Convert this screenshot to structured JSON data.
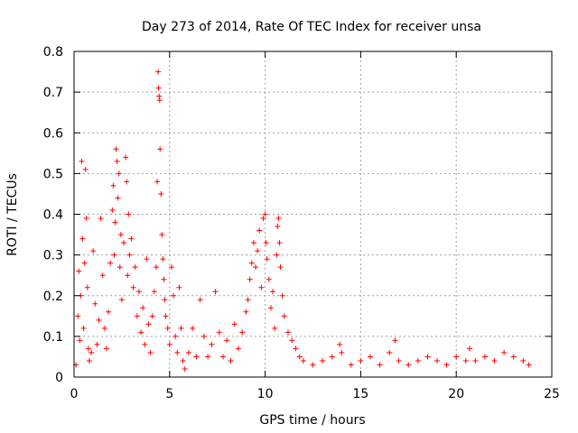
{
  "chart_data": {
    "type": "scatter",
    "title": "Day 273 of 2014, Rate Of TEC Index for receiver unsa",
    "xlabel": "GPS time / hours",
    "ylabel": "ROTI / TECUs",
    "xlim": [
      0,
      25
    ],
    "ylim": [
      0,
      0.8
    ],
    "xticks": [
      "0",
      "5",
      "10",
      "15",
      "20",
      "25"
    ],
    "yticks": [
      "0",
      "0.1",
      "0.2",
      "0.3",
      "0.4",
      "0.5",
      "0.6",
      "0.7",
      "0.8"
    ],
    "grid": true,
    "marker": "plus",
    "color": "#ff0000",
    "series": [
      {
        "values": [
          [
            0.1,
            0.03
          ],
          [
            0.2,
            0.15
          ],
          [
            0.25,
            0.26
          ],
          [
            0.3,
            0.09
          ],
          [
            0.35,
            0.2
          ],
          [
            0.4,
            0.53
          ],
          [
            0.45,
            0.34
          ],
          [
            0.5,
            0.12
          ],
          [
            0.55,
            0.28
          ],
          [
            0.6,
            0.51
          ],
          [
            0.65,
            0.39
          ],
          [
            0.7,
            0.22
          ],
          [
            0.75,
            0.07
          ],
          [
            0.8,
            0.04
          ],
          [
            0.9,
            0.06
          ],
          [
            1.0,
            0.31
          ],
          [
            1.1,
            0.18
          ],
          [
            1.2,
            0.08
          ],
          [
            1.3,
            0.14
          ],
          [
            1.4,
            0.39
          ],
          [
            1.5,
            0.25
          ],
          [
            1.6,
            0.12
          ],
          [
            1.7,
            0.07
          ],
          [
            1.8,
            0.16
          ],
          [
            1.9,
            0.28
          ],
          [
            2.0,
            0.41
          ],
          [
            2.05,
            0.47
          ],
          [
            2.1,
            0.3
          ],
          [
            2.15,
            0.38
          ],
          [
            2.2,
            0.56
          ],
          [
            2.25,
            0.53
          ],
          [
            2.3,
            0.44
          ],
          [
            2.35,
            0.5
          ],
          [
            2.4,
            0.27
          ],
          [
            2.45,
            0.35
          ],
          [
            2.5,
            0.19
          ],
          [
            2.6,
            0.33
          ],
          [
            2.7,
            0.54
          ],
          [
            2.75,
            0.48
          ],
          [
            2.8,
            0.25
          ],
          [
            2.85,
            0.4
          ],
          [
            2.9,
            0.3
          ],
          [
            3.0,
            0.34
          ],
          [
            3.1,
            0.22
          ],
          [
            3.2,
            0.27
          ],
          [
            3.3,
            0.15
          ],
          [
            3.4,
            0.21
          ],
          [
            3.5,
            0.11
          ],
          [
            3.6,
            0.17
          ],
          [
            3.7,
            0.08
          ],
          [
            3.8,
            0.29
          ],
          [
            3.9,
            0.13
          ],
          [
            4.0,
            0.06
          ],
          [
            4.1,
            0.15
          ],
          [
            4.2,
            0.21
          ],
          [
            4.3,
            0.27
          ],
          [
            4.35,
            0.48
          ],
          [
            4.4,
            0.75
          ],
          [
            4.42,
            0.71
          ],
          [
            4.45,
            0.69
          ],
          [
            4.48,
            0.68
          ],
          [
            4.5,
            0.56
          ],
          [
            4.55,
            0.45
          ],
          [
            4.6,
            0.35
          ],
          [
            4.65,
            0.29
          ],
          [
            4.7,
            0.24
          ],
          [
            4.75,
            0.19
          ],
          [
            4.8,
            0.15
          ],
          [
            4.9,
            0.12
          ],
          [
            5.0,
            0.08
          ],
          [
            5.1,
            0.27
          ],
          [
            5.2,
            0.2
          ],
          [
            5.3,
            0.1
          ],
          [
            5.4,
            0.06
          ],
          [
            5.5,
            0.22
          ],
          [
            5.6,
            0.12
          ],
          [
            5.7,
            0.04
          ],
          [
            5.8,
            0.02
          ],
          [
            6.0,
            0.06
          ],
          [
            6.2,
            0.12
          ],
          [
            6.4,
            0.05
          ],
          [
            6.6,
            0.19
          ],
          [
            6.8,
            0.1
          ],
          [
            7.0,
            0.05
          ],
          [
            7.2,
            0.08
          ],
          [
            7.4,
            0.21
          ],
          [
            7.6,
            0.11
          ],
          [
            7.8,
            0.05
          ],
          [
            8.0,
            0.09
          ],
          [
            8.2,
            0.04
          ],
          [
            8.4,
            0.13
          ],
          [
            8.6,
            0.07
          ],
          [
            8.8,
            0.11
          ],
          [
            9.0,
            0.16
          ],
          [
            9.1,
            0.19
          ],
          [
            9.2,
            0.24
          ],
          [
            9.3,
            0.28
          ],
          [
            9.4,
            0.33
          ],
          [
            9.5,
            0.27
          ],
          [
            9.6,
            0.31
          ],
          [
            9.7,
            0.36
          ],
          [
            9.8,
            0.22
          ],
          [
            9.9,
            0.39
          ],
          [
            10.0,
            0.4
          ],
          [
            10.05,
            0.33
          ],
          [
            10.1,
            0.29
          ],
          [
            10.2,
            0.24
          ],
          [
            10.3,
            0.17
          ],
          [
            10.4,
            0.21
          ],
          [
            10.5,
            0.12
          ],
          [
            10.6,
            0.3
          ],
          [
            10.65,
            0.37
          ],
          [
            10.7,
            0.39
          ],
          [
            10.75,
            0.33
          ],
          [
            10.8,
            0.27
          ],
          [
            10.9,
            0.2
          ],
          [
            11.0,
            0.15
          ],
          [
            11.2,
            0.11
          ],
          [
            11.4,
            0.09
          ],
          [
            11.6,
            0.07
          ],
          [
            11.8,
            0.05
          ],
          [
            12.0,
            0.04
          ],
          [
            12.5,
            0.03
          ],
          [
            13.0,
            0.04
          ],
          [
            13.5,
            0.05
          ],
          [
            13.9,
            0.08
          ],
          [
            14.0,
            0.06
          ],
          [
            14.5,
            0.03
          ],
          [
            15.0,
            0.04
          ],
          [
            15.5,
            0.05
          ],
          [
            16.0,
            0.03
          ],
          [
            16.5,
            0.06
          ],
          [
            16.8,
            0.09
          ],
          [
            17.0,
            0.04
          ],
          [
            17.5,
            0.03
          ],
          [
            18.0,
            0.04
          ],
          [
            18.5,
            0.05
          ],
          [
            19.0,
            0.04
          ],
          [
            19.5,
            0.03
          ],
          [
            20.0,
            0.05
          ],
          [
            20.5,
            0.04
          ],
          [
            20.7,
            0.07
          ],
          [
            21.0,
            0.04
          ],
          [
            21.5,
            0.05
          ],
          [
            22.0,
            0.04
          ],
          [
            22.5,
            0.06
          ],
          [
            23.0,
            0.05
          ],
          [
            23.5,
            0.04
          ],
          [
            23.8,
            0.03
          ]
        ]
      }
    ]
  }
}
